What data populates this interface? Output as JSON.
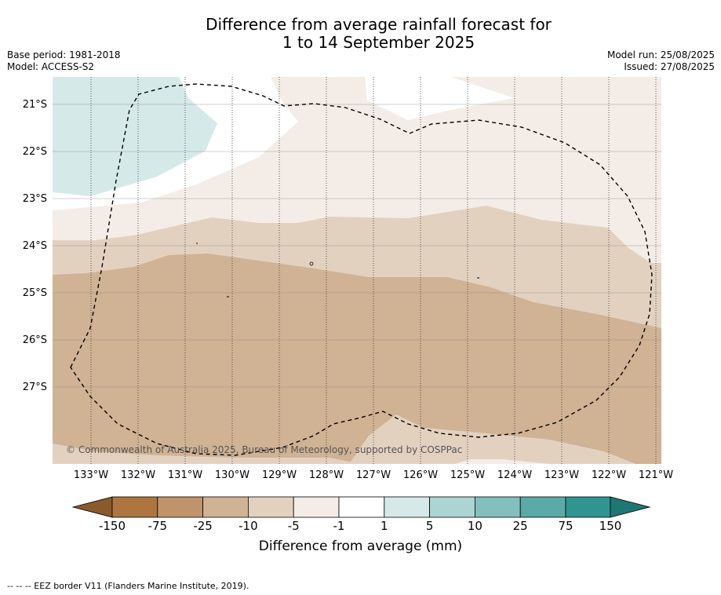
{
  "header": {
    "title_line1": "Difference from average rainfall forecast for",
    "title_line2": "1 to 14 September 2025",
    "base_period": "Base period: 1981-2018",
    "model": "Model: ACCESS-S2",
    "model_run": "Model run: 25/08/2025",
    "issued": "Issued: 27/08/2025"
  },
  "map": {
    "latitude_labels": [
      "21°S",
      "22°S",
      "23°S",
      "24°S",
      "25°S",
      "26°S",
      "27°S"
    ],
    "longitude_labels": [
      "133°W",
      "132°W",
      "131°W",
      "130°W",
      "129°W",
      "128°W",
      "127°W",
      "126°W",
      "125°W",
      "124°W",
      "123°W",
      "122°W",
      "121°W"
    ],
    "copyright": "© Commonwealth of Australia 2025, Bureau of Meteorology, supported by COSPPac"
  },
  "colorbar": {
    "title": "Difference from average (mm)",
    "labels": [
      "-150",
      "-75",
      "-25",
      "-10",
      "-5",
      "-1",
      "1",
      "5",
      "10",
      "25",
      "75",
      "150"
    ],
    "colors": [
      "#ad7640",
      "#c0946a",
      "#d0b294",
      "#e3d1c0",
      "#f4ede7",
      "#ffffff",
      "#d5e9e8",
      "#acd4d3",
      "#83bfbd",
      "#5aaaa7",
      "#309591"
    ],
    "end_low_color": "#8b5a2b",
    "end_high_color": "#1f7773"
  },
  "footer": {
    "legend_note": "--  --  -- EEZ border V11 (Flanders Marine Institute, 2019)."
  }
}
